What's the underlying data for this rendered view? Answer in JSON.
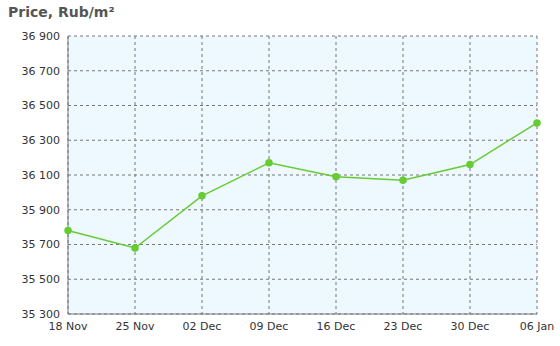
{
  "chart_data": {
    "type": "line",
    "title": "Price, Rub/m²",
    "categories": [
      "18 Nov",
      "25 Nov",
      "02 Dec",
      "09 Dec",
      "16 Dec",
      "23 Dec",
      "30 Dec",
      "06 Jan"
    ],
    "values": [
      35780,
      35680,
      35980,
      36170,
      36090,
      36070,
      36160,
      36400
    ],
    "color": "#66cc33",
    "marker": "circle",
    "line_style": "solid",
    "ylim": [
      35300,
      36900
    ],
    "yticks": [
      {
        "value": 35300,
        "label": "35 300"
      },
      {
        "value": 35500,
        "label": "35 500"
      },
      {
        "value": 35700,
        "label": "35 700"
      },
      {
        "value": 35900,
        "label": "35 900"
      },
      {
        "value": 36100,
        "label": "36 100"
      },
      {
        "value": 36300,
        "label": "36 300"
      },
      {
        "value": 36500,
        "label": "36 500"
      },
      {
        "value": 36700,
        "label": "36 700"
      },
      {
        "value": 36900,
        "label": "36 900"
      }
    ],
    "grid": true
  }
}
